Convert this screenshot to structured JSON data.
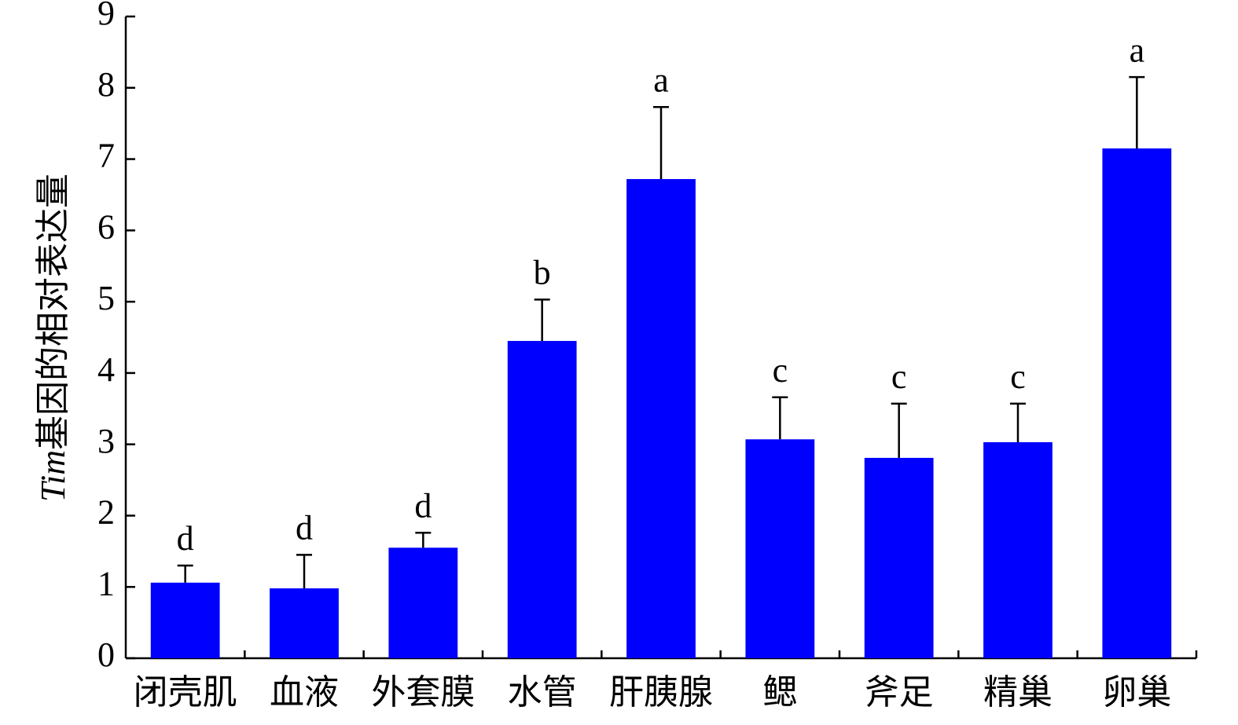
{
  "chart_data": {
    "type": "bar",
    "y_label": {
      "italic": "Tim",
      "text": "基因的相对表达量"
    },
    "categories": [
      "闭壳肌",
      "血液",
      "外套膜",
      "水管",
      "肝胰腺",
      "鳃",
      "斧足",
      "精巢",
      "卵巢"
    ],
    "values": [
      1.06,
      0.98,
      1.55,
      4.45,
      6.72,
      3.07,
      2.81,
      3.03,
      7.15
    ],
    "errors": [
      0.24,
      0.47,
      0.21,
      0.58,
      1.01,
      0.59,
      0.76,
      0.54,
      1.0
    ],
    "letters": [
      "d",
      "d",
      "d",
      "b",
      "a",
      "c",
      "c",
      "c",
      "a"
    ],
    "color": "#0000ff",
    "ylim": [
      0,
      9
    ],
    "yticks": [
      0,
      1,
      2,
      3,
      4,
      5,
      6,
      7,
      8,
      9
    ],
    "grid": false
  }
}
